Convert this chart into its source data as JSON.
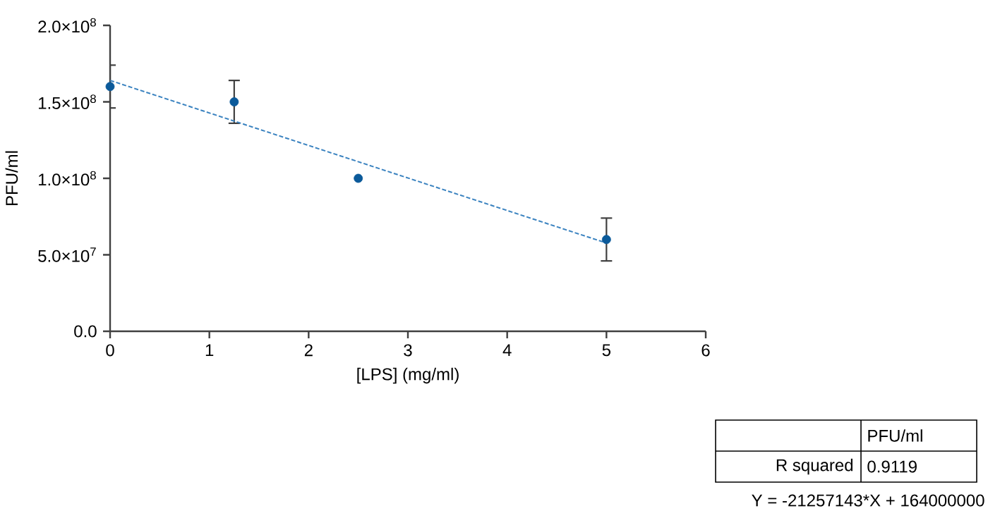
{
  "chart_data": {
    "type": "scatter",
    "xlabel": "[LPS] (mg/ml)",
    "ylabel": "PFU/ml",
    "xlim": [
      0,
      6
    ],
    "xticks": [
      0,
      1,
      2,
      3,
      4,
      5,
      6
    ],
    "ylim": [
      0,
      200000000
    ],
    "yticks": [
      {
        "value": 0,
        "label": "0.0"
      },
      {
        "value": 50000000,
        "label": "5.0×10$^{7}$"
      },
      {
        "value": 100000000,
        "label": "1.0×10$^{8}$"
      },
      {
        "value": 150000000,
        "label": "1.5×10$^{8}$"
      },
      {
        "value": 200000000,
        "label": "2.0×10$^{8}$"
      }
    ],
    "series": [
      {
        "color": "#0b5a9a",
        "marker": "circle",
        "x": [
          0,
          1.25,
          2.5,
          5
        ],
        "values": [
          160000000,
          150000000,
          100000000,
          60000000
        ],
        "errors": [
          14000000,
          14000000,
          null,
          14000000
        ]
      },
      {
        "type": "line",
        "color": "#3b83c0",
        "line_style": "dashed",
        "marker": "none",
        "x": [
          0,
          5
        ],
        "values": [
          164000000,
          57700000
        ]
      }
    ],
    "annotations": [
      "PFU/ml",
      "R squared",
      "0.9119",
      "Y = -21257143*X + 164000000"
    ]
  }
}
